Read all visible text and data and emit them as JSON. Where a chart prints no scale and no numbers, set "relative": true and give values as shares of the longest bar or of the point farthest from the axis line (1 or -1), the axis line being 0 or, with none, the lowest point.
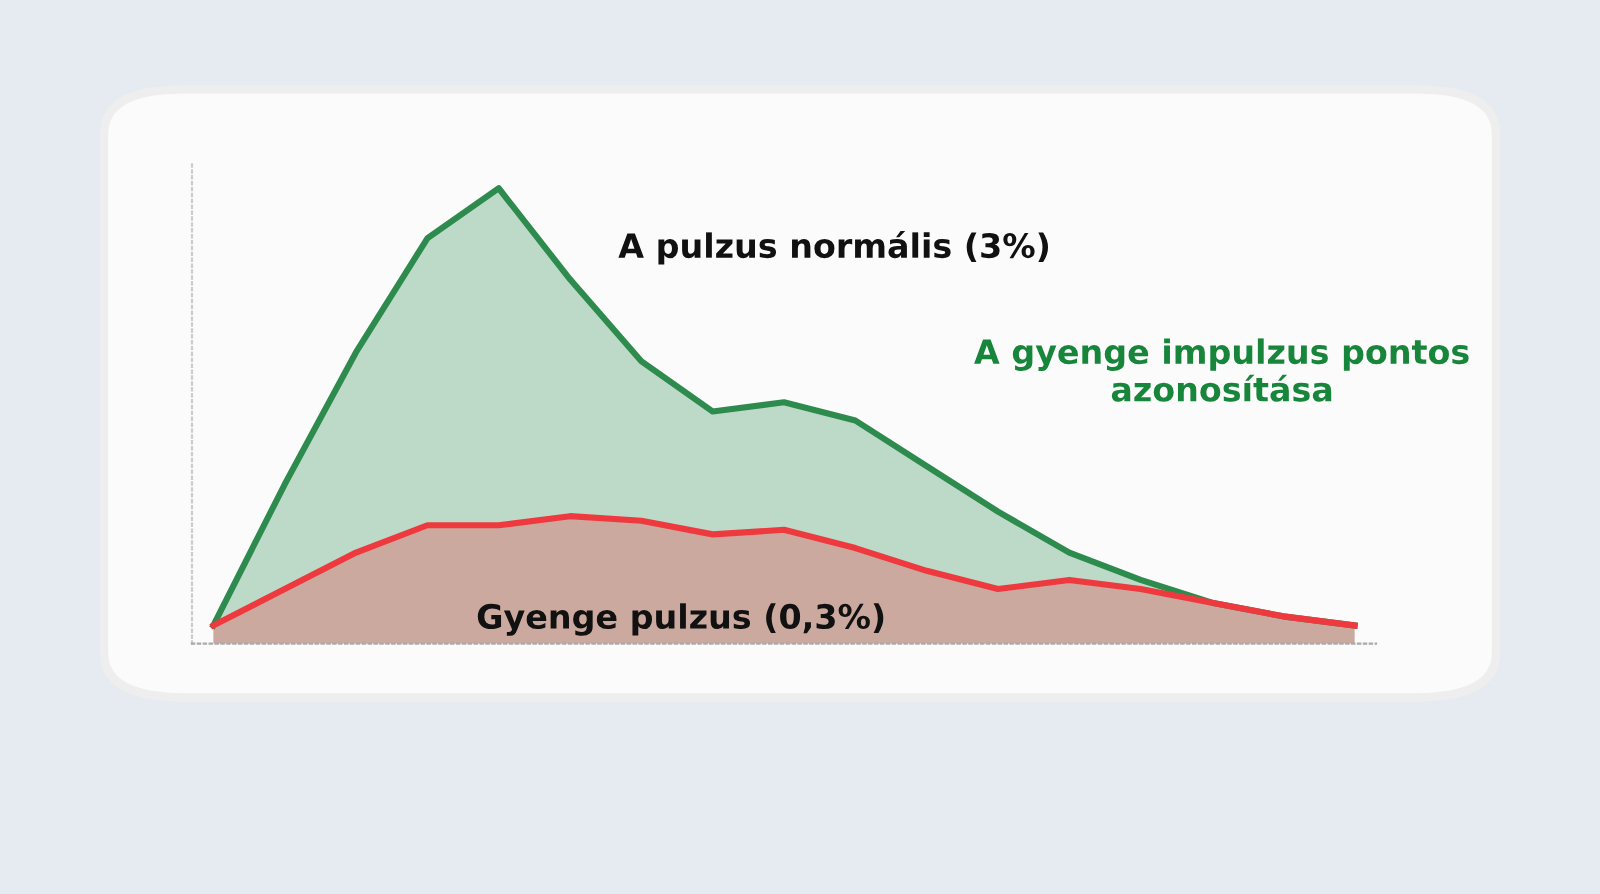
{
  "chart_data": {
    "type": "area",
    "relative": true,
    "categories": [
      null,
      null,
      null,
      null,
      null,
      null,
      null,
      null,
      null,
      null,
      null,
      null,
      null,
      null,
      null,
      null,
      null
    ],
    "series": [
      {
        "color": "#2e8b4e",
        "values": [
          0.04,
          0.35,
          0.64,
          0.89,
          1.0,
          0.8,
          0.62,
          0.51,
          0.53,
          0.49,
          0.39,
          0.29,
          0.2,
          0.14,
          0.09,
          0.06,
          0.04
        ]
      },
      {
        "color": "#ee3a3e",
        "values": [
          0.04,
          0.12,
          0.2,
          0.26,
          0.26,
          0.28,
          0.27,
          0.24,
          0.25,
          0.21,
          0.16,
          0.12,
          0.14,
          0.12,
          0.09,
          0.06,
          0.04
        ]
      }
    ],
    "annotations": [
      "A pulzus normális (3%)",
      "A gyenge impulzus pontos azonosítása",
      "Gyenge pulzus (0,3%)"
    ],
    "grid": false,
    "legend": false,
    "line_style": "solid",
    "marker": "none"
  }
}
